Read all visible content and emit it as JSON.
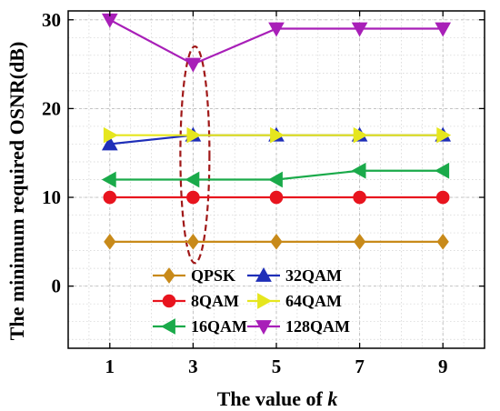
{
  "chart_data": {
    "type": "line",
    "x": [
      1,
      3,
      5,
      7,
      9
    ],
    "xticks": [
      "1",
      "3",
      "5",
      "7",
      "9"
    ],
    "yticks": [
      "0",
      "10",
      "20",
      "30"
    ],
    "xlabel_text": "The value of ",
    "xlabel_var": "k",
    "ylabel": "The minimum required OSNR(dB)",
    "xlim": [
      0,
      10
    ],
    "ylim": [
      -7,
      31
    ],
    "grid": true,
    "legend_position": "bottom-center",
    "series": [
      {
        "name": "QPSK",
        "color": "#c88a1a",
        "marker": "diamond",
        "values": [
          5,
          5,
          5,
          5,
          5
        ]
      },
      {
        "name": "8QAM",
        "color": "#e8141e",
        "marker": "circle",
        "values": [
          10,
          10,
          10,
          10,
          10
        ]
      },
      {
        "name": "16QAM",
        "color": "#1aaa4a",
        "marker": "triangle-left",
        "values": [
          12,
          12,
          12,
          13,
          13
        ]
      },
      {
        "name": "32QAM",
        "color": "#1f2fb8",
        "marker": "triangle-up",
        "values": [
          16,
          17,
          17,
          17,
          17
        ]
      },
      {
        "name": "64QAM",
        "color": "#e6e61e",
        "marker": "triangle-right",
        "values": [
          17,
          17,
          17,
          17,
          17
        ]
      },
      {
        "name": "128QAM",
        "color": "#a81fb8",
        "marker": "triangle-down",
        "values": [
          30,
          25,
          29,
          29,
          29
        ]
      }
    ],
    "highlight": {
      "shape": "dashed-ellipse",
      "at_x": 3,
      "color": "#a01818"
    }
  }
}
